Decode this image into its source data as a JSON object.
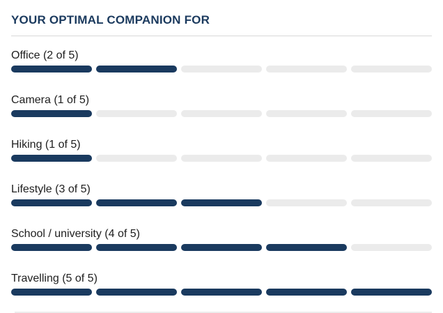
{
  "header": {
    "title": "YOUR OPTIMAL COMPANION FOR"
  },
  "colors": {
    "title": "#1b3a5e",
    "label": "#1e1e1e",
    "accent": "#1a3a5f",
    "track": "#ebebeb",
    "divider_top": "#d8d8d8",
    "divider_bottom": "#ededed"
  },
  "ratings": {
    "max": 5,
    "items": [
      {
        "name": "Office",
        "label": "Office (2 of 5)",
        "value": 2
      },
      {
        "name": "Camera",
        "label": "Camera (1 of 5)",
        "value": 1
      },
      {
        "name": "Hiking",
        "label": "Hiking (1 of 5)",
        "value": 1
      },
      {
        "name": "Lifestyle",
        "label": "Lifestyle (3 of 5)",
        "value": 3
      },
      {
        "name": "School / university",
        "label": "School / university (4 of 5)",
        "value": 4
      },
      {
        "name": "Travelling",
        "label": "Travelling (5 of 5)",
        "value": 5
      }
    ]
  }
}
